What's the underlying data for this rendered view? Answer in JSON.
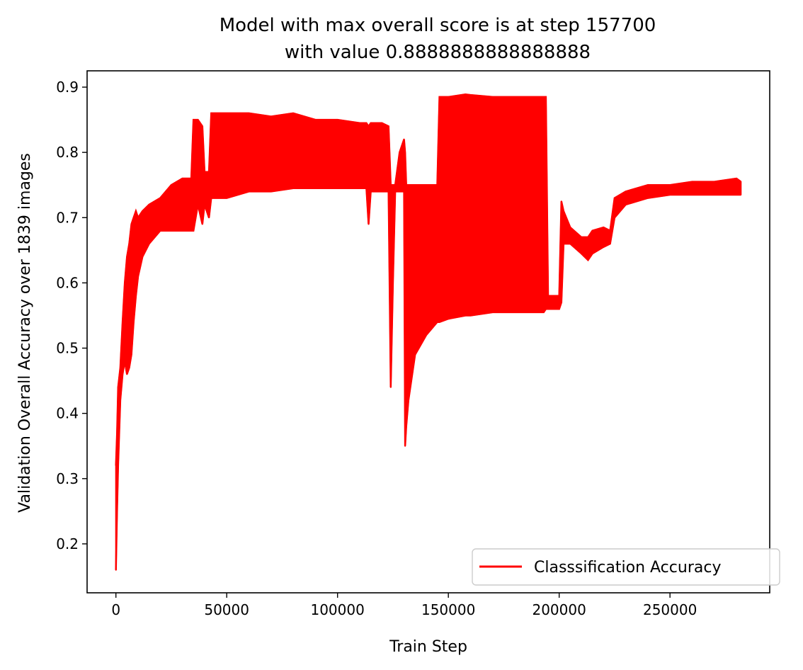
{
  "chart_data": {
    "type": "line",
    "title_line1": "Model with max overall score is at step 157700",
    "title_line2": "with value 0.8888888888888888",
    "xlabel": "Train Step",
    "ylabel": "Validation Overall Accuracy over 1839 images",
    "xlim": [
      -13000,
      295000
    ],
    "ylim": [
      0.125,
      0.925
    ],
    "xticks": [
      0,
      50000,
      100000,
      150000,
      200000,
      250000
    ],
    "xtick_labels": [
      "0",
      "50000",
      "100000",
      "150000",
      "200000",
      "250000"
    ],
    "yticks": [
      0.2,
      0.3,
      0.4,
      0.5,
      0.6,
      0.7,
      0.8,
      0.9
    ],
    "ytick_labels": [
      "0.2",
      "0.3",
      "0.4",
      "0.5",
      "0.6",
      "0.7",
      "0.8",
      "0.9"
    ],
    "grid": false,
    "legend_position": "lower-right",
    "series": [
      {
        "name": "Classsification Accuracy",
        "color": "#ff0000",
        "envelope": {
          "x": [
            0,
            500,
            1000,
            2000,
            3000,
            4000,
            5000,
            6000,
            7000,
            8000,
            9000,
            10000,
            12000,
            15000,
            20000,
            25000,
            30000,
            34000,
            35000,
            37000,
            39000,
            40000,
            42000,
            43000,
            50000,
            60000,
            70000,
            80000,
            90000,
            100000,
            110000,
            113000,
            114000,
            115000,
            120000,
            123000,
            124000,
            125000,
            126000,
            128000,
            130000,
            130500,
            131000,
            132000,
            135000,
            140000,
            145000,
            146000,
            150000,
            157700,
            160000,
            170000,
            180000,
            190000,
            193000,
            194000,
            195000,
            200000,
            201000,
            202000,
            205000,
            210000,
            213000,
            215000,
            220000,
            223000,
            225000,
            230000,
            240000,
            250000,
            260000,
            270000,
            280000,
            282000
          ],
          "upper": [
            0.32,
            0.37,
            0.44,
            0.47,
            0.54,
            0.6,
            0.64,
            0.66,
            0.69,
            0.7,
            0.71,
            0.7,
            0.71,
            0.72,
            0.73,
            0.75,
            0.76,
            0.76,
            0.85,
            0.85,
            0.84,
            0.77,
            0.77,
            0.86,
            0.86,
            0.86,
            0.855,
            0.86,
            0.85,
            0.85,
            0.845,
            0.845,
            0.84,
            0.845,
            0.845,
            0.84,
            0.75,
            0.75,
            0.75,
            0.8,
            0.82,
            0.8,
            0.75,
            0.75,
            0.75,
            0.75,
            0.75,
            0.885,
            0.885,
            0.889,
            0.888,
            0.885,
            0.885,
            0.885,
            0.885,
            0.885,
            0.58,
            0.58,
            0.725,
            0.71,
            0.685,
            0.67,
            0.67,
            0.68,
            0.685,
            0.68,
            0.73,
            0.74,
            0.75,
            0.75,
            0.755,
            0.755,
            0.76,
            0.755
          ],
          "lower": [
            0.16,
            0.25,
            0.32,
            0.42,
            0.46,
            0.48,
            0.46,
            0.47,
            0.49,
            0.54,
            0.58,
            0.61,
            0.64,
            0.66,
            0.68,
            0.68,
            0.68,
            0.68,
            0.68,
            0.72,
            0.69,
            0.72,
            0.7,
            0.73,
            0.73,
            0.74,
            0.74,
            0.745,
            0.745,
            0.745,
            0.745,
            0.745,
            0.69,
            0.74,
            0.74,
            0.74,
            0.44,
            0.6,
            0.74,
            0.74,
            0.74,
            0.35,
            0.38,
            0.42,
            0.49,
            0.52,
            0.54,
            0.54,
            0.545,
            0.55,
            0.55,
            0.555,
            0.555,
            0.555,
            0.555,
            0.56,
            0.56,
            0.56,
            0.57,
            0.66,
            0.66,
            0.645,
            0.635,
            0.645,
            0.655,
            0.66,
            0.7,
            0.72,
            0.73,
            0.735,
            0.735,
            0.735,
            0.735,
            0.735
          ]
        }
      }
    ]
  }
}
